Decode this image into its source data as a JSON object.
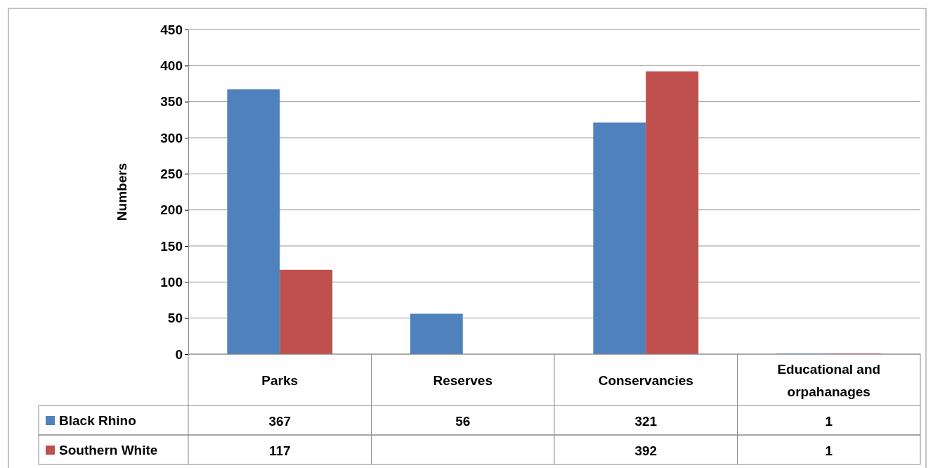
{
  "chart_data": {
    "type": "bar",
    "ylabel": "Numbers",
    "categories": [
      "Parks",
      "Reserves",
      "Conservancies",
      "Educational and orpahanages"
    ],
    "series": [
      {
        "name": "Black Rhino",
        "color": "#4f81bd",
        "values": [
          367,
          56,
          321,
          1
        ]
      },
      {
        "name": "Southern White",
        "color": "#c0504d",
        "values": [
          117,
          null,
          392,
          1
        ]
      }
    ],
    "ylim": [
      0,
      450
    ],
    "yticks": [
      0,
      50,
      100,
      150,
      200,
      250,
      300,
      350,
      400,
      450
    ],
    "grid": "y",
    "legend": "bottom",
    "data_labels": true
  }
}
